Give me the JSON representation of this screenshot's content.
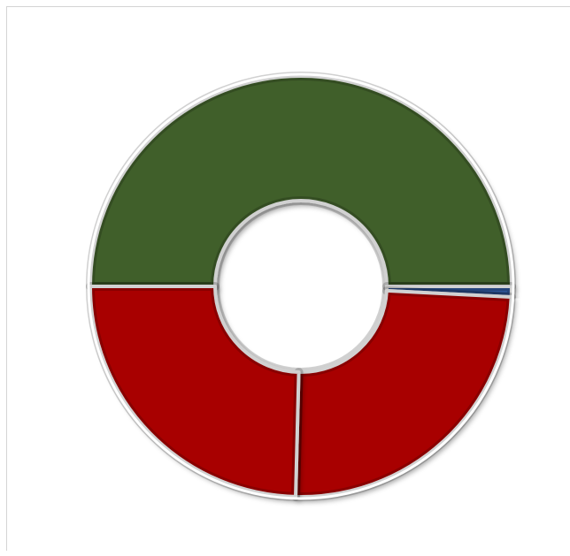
{
  "chart_data": {
    "type": "pie",
    "subtype": "donut",
    "title": "",
    "legend": "none",
    "data_labels": "none",
    "slices": [
      {
        "value": 50.0,
        "color": "#3f5e2b"
      },
      {
        "value": 0.8,
        "color": "#2f5597"
      },
      {
        "value": 24.6,
        "color": "#a80000"
      },
      {
        "value": 24.6,
        "color": "#a80000"
      }
    ],
    "start_angle_deg": 180,
    "direction": "clockwise"
  }
}
